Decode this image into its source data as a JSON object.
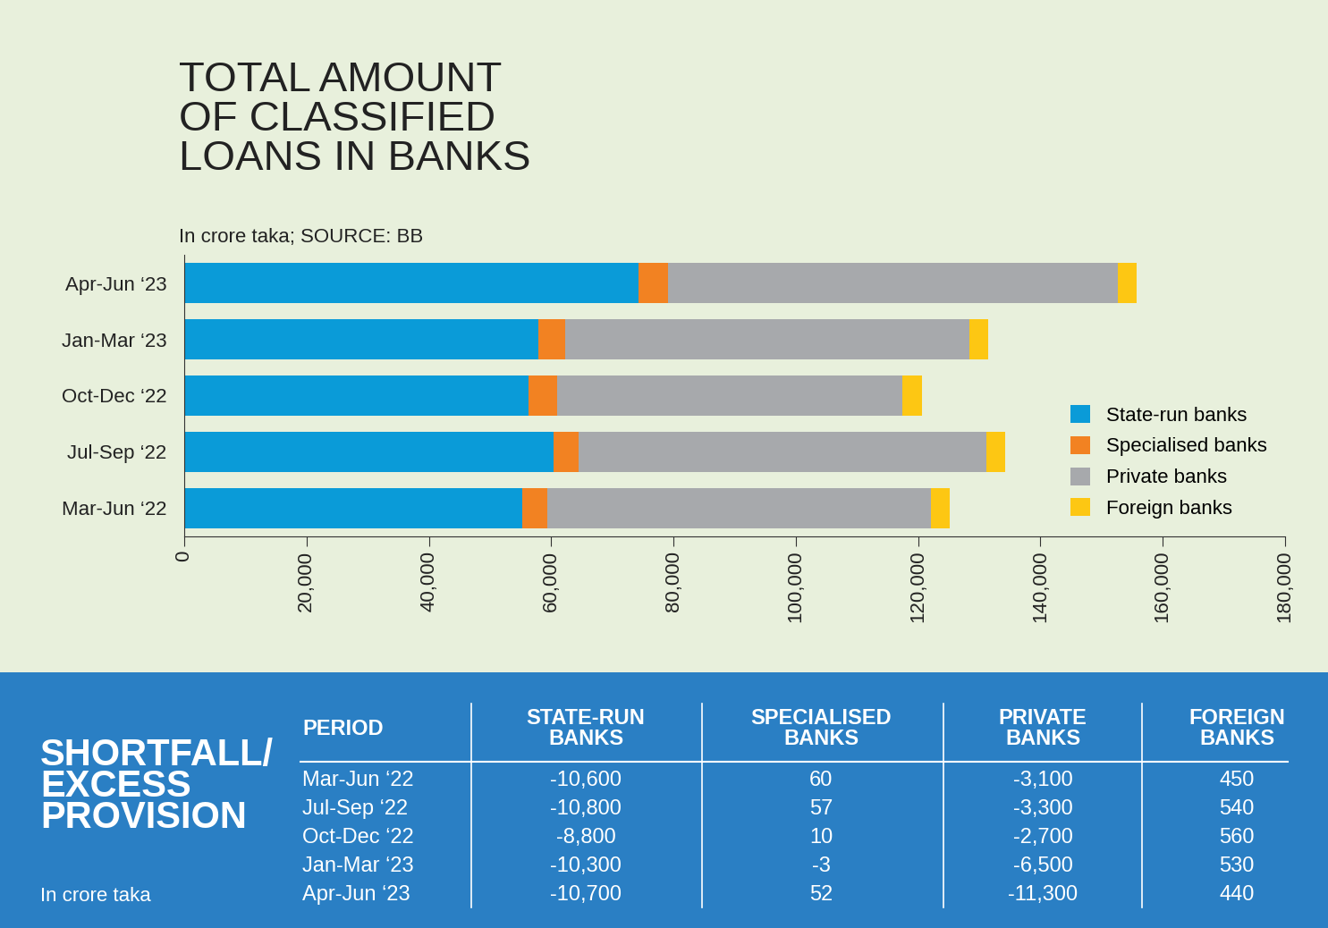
{
  "chart_data": {
    "type": "bar",
    "orientation": "horizontal",
    "stacked": true,
    "title": "TOTAL AMOUNT\nOF CLASSIFIED\nLOANS IN BANKS",
    "subtitle": "In crore taka; SOURCE: BB",
    "categories": [
      "Apr-Jun ‘23",
      "Jan-Mar ‘23",
      "Oct-Dec ‘22",
      "Jul-Sep ‘22",
      "Mar-Jun ‘22"
    ],
    "series": [
      {
        "name": "State-run banks",
        "color": "#0a9bd8",
        "values": [
          74300,
          57900,
          56300,
          60400,
          55300
        ]
      },
      {
        "name": "Specialised banks",
        "color": "#f28222",
        "values": [
          4800,
          4400,
          4700,
          4100,
          4100
        ]
      },
      {
        "name": "Private banks",
        "color": "#a7a9ac",
        "values": [
          73500,
          66100,
          56400,
          66700,
          62700
        ]
      },
      {
        "name": "Foreign banks",
        "color": "#fdc713",
        "values": [
          3200,
          3100,
          3200,
          3100,
          3100
        ]
      }
    ],
    "xlim": [
      0,
      180000
    ],
    "xticks": [
      0,
      {
        "value": 20000,
        "label": "20,000"
      },
      {
        "value": 40000,
        "label": "40,000"
      },
      {
        "value": 60000,
        "label": "60,000"
      },
      {
        "value": 80000,
        "label": "80,000"
      },
      {
        "value": 100000,
        "label": "100,000"
      },
      {
        "value": 120000,
        "label": "120,000"
      },
      {
        "value": 140000,
        "label": "140,000"
      },
      {
        "value": 160000,
        "label": "160,000"
      },
      {
        "value": 180000,
        "label": "180,000"
      }
    ],
    "legend": "lower right",
    "grid": false
  },
  "table": {
    "title": "SHORTFALL/\nEXCESS\nPROVISION",
    "subtitle": "In crore taka",
    "columns": [
      "PERIOD",
      "STATE-RUN\nBANKS",
      "SPECIALISED\nBANKS",
      "PRIVATE\nBANKS",
      "FOREIGN\nBANKS"
    ],
    "rows": [
      [
        "Mar-Jun ‘22",
        "-10,600",
        "60",
        "-3,100",
        "450"
      ],
      [
        "Jul-Sep ‘22",
        "-10,800",
        "57",
        "-3,300",
        "540"
      ],
      [
        "Oct-Dec ‘22",
        "-8,800",
        "10",
        "-2,700",
        "560"
      ],
      [
        "Jan-Mar ‘23",
        "-10,300",
        "-3",
        "-6,500",
        "530"
      ],
      [
        "Apr-Jun ‘23",
        "-10,700",
        "52",
        "-11,300",
        "440"
      ]
    ]
  }
}
